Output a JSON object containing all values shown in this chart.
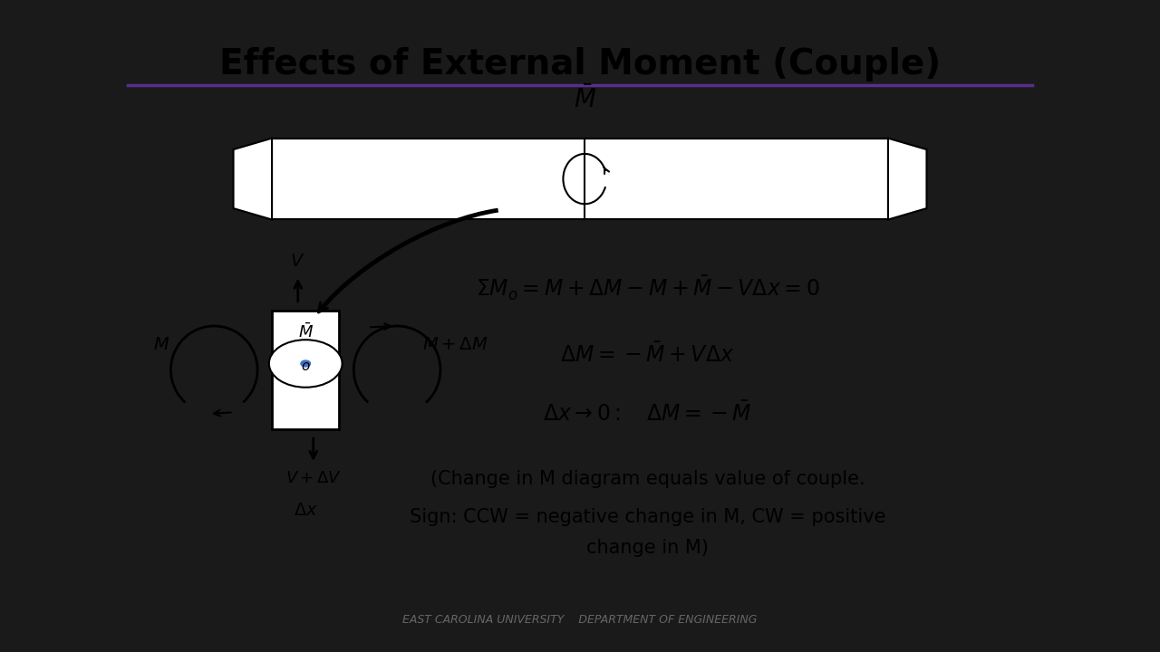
{
  "title": "Effects of External Moment (Couple)",
  "title_fontsize": 28,
  "title_fontweight": "bold",
  "title_color": "#000000",
  "separator_color": "#5b2d8e",
  "background_color": "#ffffff",
  "content_bg": "#ffffff",
  "border_color": "#000000",
  "eq1": "$\\Sigma M_o = M + \\Delta M - M + \\bar{M} - V\\Delta x = 0$",
  "eq2": "$\\Delta M = -\\bar{M} + V\\Delta x$",
  "eq3": "$\\Delta x \\rightarrow 0: \\quad \\Delta M = -\\bar{M}$",
  "note1": "(Change in M diagram equals value of couple.",
  "note2": "Sign: CCW = negative change in M, CW = positive",
  "note3": "change in M)",
  "footer": "EAST CAROLINA UNIVERSITY    DEPARTMENT OF ENGINEERING",
  "outer_bg": "#1a1a1a"
}
